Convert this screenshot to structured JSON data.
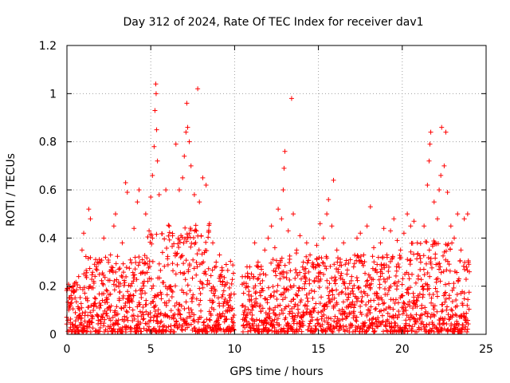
{
  "chart_data": {
    "type": "scatter",
    "title": "Day 312 of 2024, Rate Of TEC Index for receiver dav1",
    "xlabel": "GPS time / hours",
    "ylabel": "ROTI / TECUs",
    "xlim": [
      0,
      25
    ],
    "ylim": [
      0,
      1.2
    ],
    "x_ticks": [
      0,
      5,
      10,
      15,
      20,
      25
    ],
    "x_tick_labels": [
      "0",
      "5",
      "10",
      "15",
      "20",
      "25"
    ],
    "y_ticks": [
      0,
      0.2,
      0.4,
      0.6,
      0.8,
      1.0,
      1.2
    ],
    "y_tick_labels": [
      "0",
      "0.2",
      "0.4",
      "0.6",
      "0.8",
      "1",
      "1.2"
    ],
    "grid": true,
    "marker": "+",
    "series": [
      {
        "name": "dav1",
        "color": "#ff0000",
        "description": "dense ROTI scatter; typical values 0.02-0.35, gap near 10 h",
        "points": [
          [
            0.2,
            0.12
          ],
          [
            0.4,
            0.18
          ],
          [
            0.5,
            0.09
          ],
          [
            0.7,
            0.24
          ],
          [
            0.9,
            0.35
          ],
          [
            1.0,
            0.42
          ],
          [
            1.2,
            0.15
          ],
          [
            1.3,
            0.52
          ],
          [
            1.4,
            0.48
          ],
          [
            1.6,
            0.22
          ],
          [
            1.8,
            0.08
          ],
          [
            2.0,
            0.3
          ],
          [
            2.2,
            0.4
          ],
          [
            2.4,
            0.18
          ],
          [
            2.6,
            0.33
          ],
          [
            2.8,
            0.45
          ],
          [
            2.9,
            0.5
          ],
          [
            3.1,
            0.27
          ],
          [
            3.3,
            0.38
          ],
          [
            3.5,
            0.63
          ],
          [
            3.6,
            0.59
          ],
          [
            3.8,
            0.2
          ],
          [
            4.0,
            0.44
          ],
          [
            4.2,
            0.55
          ],
          [
            4.3,
            0.6
          ],
          [
            4.5,
            0.31
          ],
          [
            4.7,
            0.5
          ],
          [
            4.9,
            0.43
          ],
          [
            5.0,
            0.57
          ],
          [
            5.1,
            0.66
          ],
          [
            5.2,
            0.78
          ],
          [
            5.25,
            0.93
          ],
          [
            5.3,
            1.04
          ],
          [
            5.32,
            1.0
          ],
          [
            5.35,
            0.85
          ],
          [
            5.4,
            0.72
          ],
          [
            5.5,
            0.58
          ],
          [
            5.7,
            0.34
          ],
          [
            5.9,
            0.6
          ],
          [
            6.1,
            0.45
          ],
          [
            6.3,
            0.41
          ],
          [
            6.5,
            0.79
          ],
          [
            6.7,
            0.6
          ],
          [
            6.9,
            0.65
          ],
          [
            7.0,
            0.74
          ],
          [
            7.1,
            0.84
          ],
          [
            7.15,
            0.96
          ],
          [
            7.2,
            0.86
          ],
          [
            7.3,
            0.8
          ],
          [
            7.4,
            0.7
          ],
          [
            7.6,
            0.58
          ],
          [
            7.8,
            1.02
          ],
          [
            7.9,
            0.55
          ],
          [
            8.1,
            0.65
          ],
          [
            8.3,
            0.62
          ],
          [
            8.5,
            0.46
          ],
          [
            8.7,
            0.38
          ],
          [
            8.9,
            0.3
          ],
          [
            9.1,
            0.33
          ],
          [
            9.3,
            0.22
          ],
          [
            9.5,
            0.29
          ],
          [
            9.7,
            0.14
          ],
          [
            9.9,
            0.07
          ],
          [
            10.5,
            0.12
          ],
          [
            10.7,
            0.2
          ],
          [
            10.9,
            0.28
          ],
          [
            11.2,
            0.38
          ],
          [
            11.4,
            0.3
          ],
          [
            11.6,
            0.27
          ],
          [
            11.8,
            0.35
          ],
          [
            12.0,
            0.4
          ],
          [
            12.2,
            0.45
          ],
          [
            12.4,
            0.36
          ],
          [
            12.6,
            0.52
          ],
          [
            12.8,
            0.48
          ],
          [
            12.9,
            0.6
          ],
          [
            12.95,
            0.69
          ],
          [
            13.0,
            0.76
          ],
          [
            13.2,
            0.43
          ],
          [
            13.4,
            0.98
          ],
          [
            13.5,
            0.5
          ],
          [
            13.7,
            0.35
          ],
          [
            13.9,
            0.41
          ],
          [
            14.1,
            0.3
          ],
          [
            14.3,
            0.38
          ],
          [
            14.5,
            0.33
          ],
          [
            14.7,
            0.29
          ],
          [
            14.9,
            0.37
          ],
          [
            15.1,
            0.46
          ],
          [
            15.3,
            0.4
          ],
          [
            15.5,
            0.5
          ],
          [
            15.6,
            0.56
          ],
          [
            15.8,
            0.45
          ],
          [
            15.9,
            0.64
          ],
          [
            16.1,
            0.35
          ],
          [
            16.3,
            0.3
          ],
          [
            16.5,
            0.38
          ],
          [
            16.7,
            0.25
          ],
          [
            16.9,
            0.31
          ],
          [
            17.1,
            0.28
          ],
          [
            17.3,
            0.4
          ],
          [
            17.5,
            0.42
          ],
          [
            17.7,
            0.33
          ],
          [
            17.9,
            0.45
          ],
          [
            18.1,
            0.53
          ],
          [
            18.3,
            0.36
          ],
          [
            18.5,
            0.29
          ],
          [
            18.7,
            0.38
          ],
          [
            18.9,
            0.44
          ],
          [
            19.1,
            0.32
          ],
          [
            19.3,
            0.43
          ],
          [
            19.5,
            0.48
          ],
          [
            19.7,
            0.39
          ],
          [
            19.9,
            0.35
          ],
          [
            20.1,
            0.42
          ],
          [
            20.3,
            0.5
          ],
          [
            20.5,
            0.45
          ],
          [
            20.7,
            0.47
          ],
          [
            20.9,
            0.38
          ],
          [
            21.1,
            0.3
          ],
          [
            21.3,
            0.45
          ],
          [
            21.5,
            0.62
          ],
          [
            21.6,
            0.72
          ],
          [
            21.65,
            0.79
          ],
          [
            21.7,
            0.84
          ],
          [
            21.9,
            0.55
          ],
          [
            22.1,
            0.48
          ],
          [
            22.2,
            0.6
          ],
          [
            22.3,
            0.66
          ],
          [
            22.35,
            0.86
          ],
          [
            22.5,
            0.7
          ],
          [
            22.6,
            0.84
          ],
          [
            22.7,
            0.59
          ],
          [
            22.9,
            0.45
          ],
          [
            23.1,
            0.4
          ],
          [
            23.3,
            0.5
          ],
          [
            23.5,
            0.35
          ],
          [
            23.7,
            0.48
          ],
          [
            23.9,
            0.5
          ],
          [
            24.0,
            0.26
          ]
        ]
      }
    ]
  }
}
